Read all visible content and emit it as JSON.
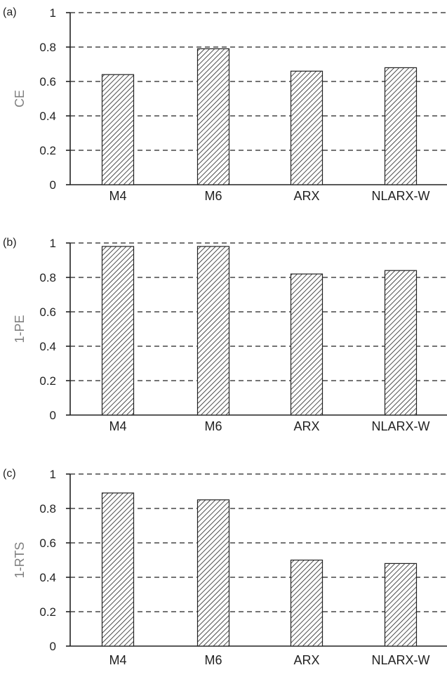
{
  "chart_data": [
    {
      "type": "bar",
      "panel_label": "(a)",
      "categories": [
        "M4",
        "M6",
        "ARX",
        "NLARX-W"
      ],
      "values": [
        0.64,
        0.79,
        0.66,
        0.68
      ],
      "ylabel": "CE",
      "xlabel": "",
      "ylim": [
        0,
        1
      ],
      "yticks": [
        "0",
        "0.2",
        "0.4",
        "0.6",
        "0.8",
        "1"
      ],
      "grid": "dashed-horizontal",
      "bar_pattern": "diagonal-hatch"
    },
    {
      "type": "bar",
      "panel_label": "(b)",
      "categories": [
        "M4",
        "M6",
        "ARX",
        "NLARX-W"
      ],
      "values": [
        0.98,
        0.98,
        0.82,
        0.84
      ],
      "ylabel": "1-PE",
      "xlabel": "",
      "ylim": [
        0,
        1
      ],
      "yticks": [
        "0",
        "0.2",
        "0.4",
        "0.6",
        "0.8",
        "1"
      ],
      "grid": "dashed-horizontal",
      "bar_pattern": "diagonal-hatch"
    },
    {
      "type": "bar",
      "panel_label": "(c)",
      "categories": [
        "M4",
        "M6",
        "ARX",
        "NLARX-W"
      ],
      "values": [
        0.89,
        0.85,
        0.5,
        0.48
      ],
      "ylabel": "1-RTS",
      "xlabel": "",
      "ylim": [
        0,
        1
      ],
      "yticks": [
        "0",
        "0.2",
        "0.4",
        "0.6",
        "0.8",
        "1"
      ],
      "grid": "dashed-horizontal",
      "bar_pattern": "diagonal-hatch"
    }
  ],
  "colors": {
    "axis": "#222222",
    "text": "#222222",
    "ylabel": "#7f7f7f",
    "hatch_line": "#222222",
    "background": "#ffffff"
  }
}
